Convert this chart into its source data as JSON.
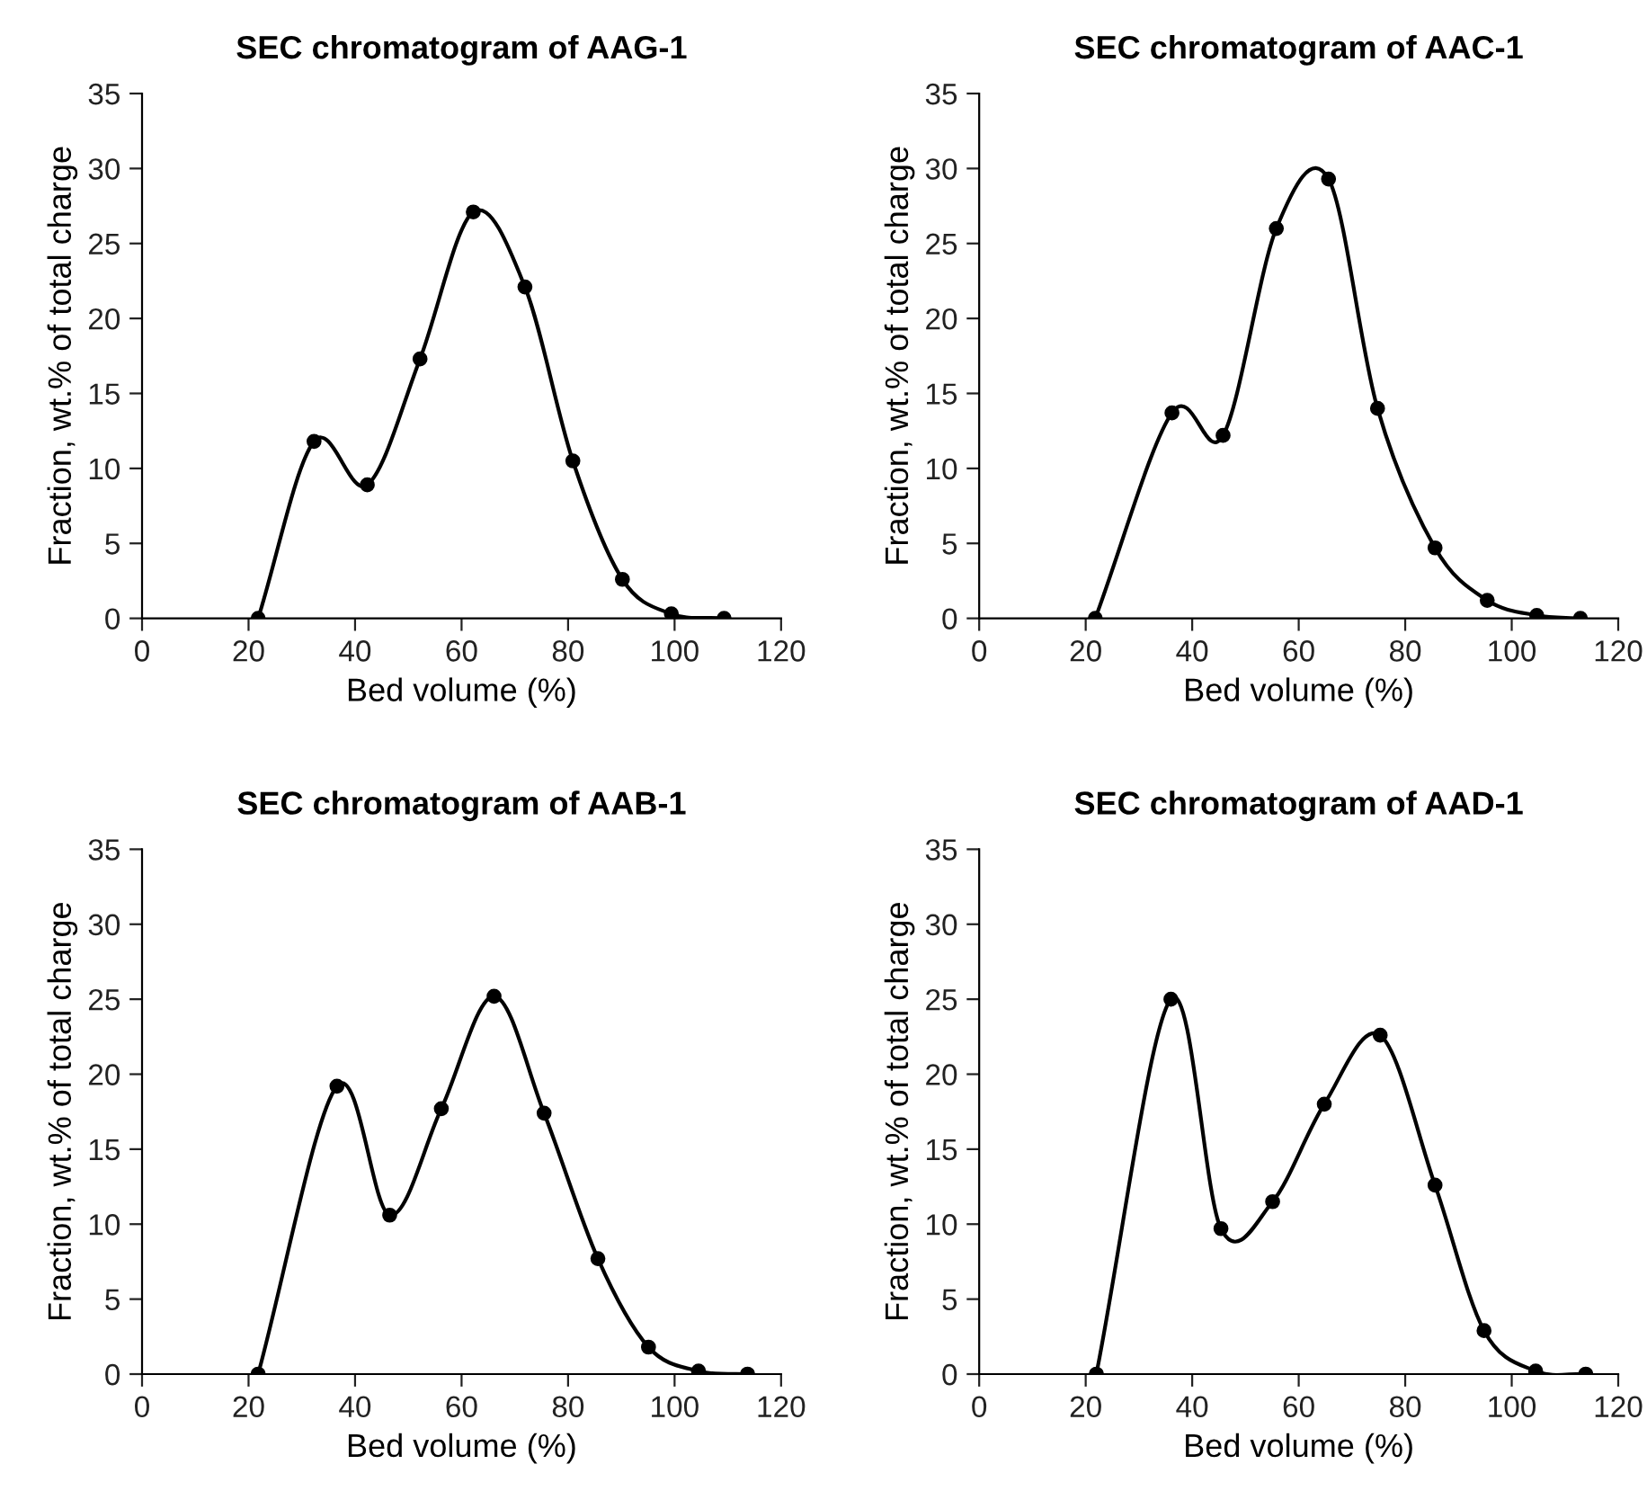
{
  "chart_data": [
    {
      "type": "line",
      "title": "SEC chromatogram of AAG-1",
      "xlabel": "Bed volume (%)",
      "ylabel": "Fraction, wt.% of total charge",
      "x": [
        21.8,
        32.3,
        42.3,
        52.2,
        62.2,
        71.9,
        80.9,
        90.2,
        99.4,
        109.3
      ],
      "series": [
        {
          "color": "#000000",
          "values": [
            0,
            11.8,
            8.9,
            17.3,
            27.1,
            22.1,
            10.5,
            2.6,
            0.3,
            0
          ]
        }
      ],
      "xlim": [
        0,
        120
      ],
      "xticks": [
        0,
        20,
        40,
        60,
        80,
        100,
        120
      ],
      "ylim": [
        0,
        35
      ],
      "yticks": [
        0,
        5,
        10,
        15,
        20,
        25,
        30,
        35
      ],
      "marker": "circle",
      "line_style": "solid",
      "grid": false
    },
    {
      "type": "line",
      "title": "SEC chromatogram of AAC-1",
      "xlabel": "Bed volume (%)",
      "ylabel": "Fraction, wt.% of total charge",
      "x": [
        21.8,
        36.2,
        45.8,
        55.8,
        65.6,
        74.8,
        85.6,
        95.4,
        104.7,
        112.9
      ],
      "series": [
        {
          "color": "#000000",
          "values": [
            0,
            13.7,
            12.2,
            26.0,
            29.3,
            14.0,
            4.7,
            1.2,
            0.2,
            0
          ]
        }
      ],
      "xlim": [
        0,
        120
      ],
      "xticks": [
        0,
        20,
        40,
        60,
        80,
        100,
        120
      ],
      "ylim": [
        0,
        35
      ],
      "yticks": [
        0,
        5,
        10,
        15,
        20,
        25,
        30,
        35
      ],
      "marker": "circle",
      "line_style": "solid",
      "grid": false
    },
    {
      "type": "line",
      "title": "SEC chromatogram of AAB-1",
      "xlabel": "Bed volume (%)",
      "ylabel": "Fraction, wt.% of total charge",
      "x": [
        21.8,
        36.6,
        46.5,
        56.2,
        66.1,
        75.5,
        85.6,
        95.1,
        104.5,
        113.7
      ],
      "series": [
        {
          "color": "#000000",
          "values": [
            0,
            19.2,
            10.6,
            17.7,
            25.2,
            17.4,
            7.7,
            1.8,
            0.2,
            0
          ]
        }
      ],
      "xlim": [
        0,
        120
      ],
      "xticks": [
        0,
        20,
        40,
        60,
        80,
        100,
        120
      ],
      "ylim": [
        0,
        35
      ],
      "yticks": [
        0,
        5,
        10,
        15,
        20,
        25,
        30,
        35
      ],
      "marker": "circle",
      "line_style": "solid",
      "grid": false
    },
    {
      "type": "line",
      "title": "SEC chromatogram of AAD-1",
      "xlabel": "Bed volume (%)",
      "ylabel": "Fraction, wt.% of total charge",
      "x": [
        22.0,
        36.0,
        45.4,
        55.1,
        64.8,
        75.3,
        85.6,
        94.8,
        104.5,
        113.9
      ],
      "series": [
        {
          "color": "#000000",
          "values": [
            0,
            25.0,
            9.7,
            11.5,
            18.0,
            22.6,
            12.6,
            2.9,
            0.2,
            0
          ]
        }
      ],
      "xlim": [
        0,
        120
      ],
      "xticks": [
        0,
        20,
        40,
        60,
        80,
        100,
        120
      ],
      "ylim": [
        0,
        35
      ],
      "yticks": [
        0,
        5,
        10,
        15,
        20,
        25,
        30,
        35
      ],
      "marker": "circle",
      "line_style": "solid",
      "grid": false
    }
  ]
}
